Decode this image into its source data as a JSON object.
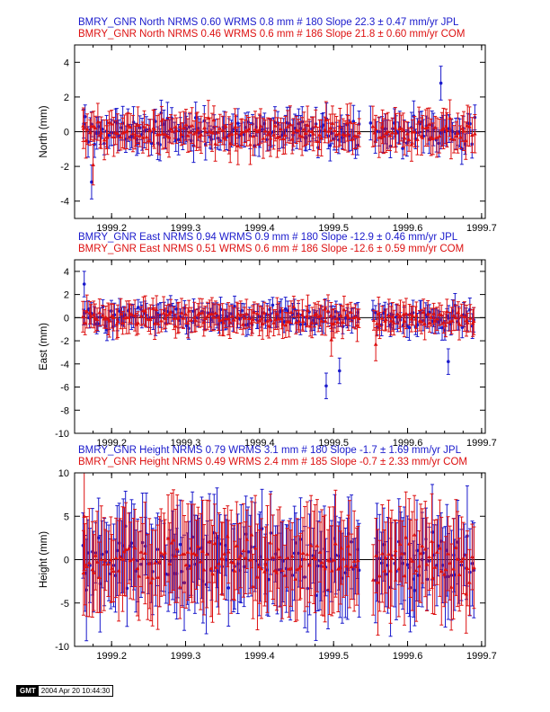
{
  "footer": {
    "logo": "GMT",
    "timestamp": "2004 Apr 20 10:44:30"
  },
  "colors": {
    "jpl": "#1a1acc",
    "com": "#dd1111",
    "zero": "#000000"
  },
  "chart_data": [
    {
      "type": "scatter",
      "title_lines": [
        "BMRY_GNR North NRMS 0.60 WRMS  0.8 mm # 180 Slope   22.3 ±  0.47 mm/yr JPL",
        "BMRY_GNR North NRMS 0.46 WRMS  0.6 mm # 186 Slope   21.8 ±  0.60 mm/yr COM"
      ],
      "ylabel": "North (mm)",
      "xlim": [
        1999.15,
        1999.705
      ],
      "ylim": [
        -5,
        5
      ],
      "xticks": [
        "1999.2",
        "1999.3",
        "1999.4",
        "1999.5",
        "1999.6",
        "1999.7"
      ],
      "yticks": [
        "-4",
        "-2",
        "0",
        "2",
        "4"
      ],
      "series": [
        {
          "name": "JPL",
          "marker": "circle",
          "n": 180,
          "wrms": 0.8,
          "err": 0.75,
          "points": [
            [
              1999.173,
              -2.9
            ],
            [
              1999.55,
              0.5
            ],
            [
              1999.645,
              2.8
            ]
          ]
        },
        {
          "name": "COM",
          "marker": "triangle",
          "n": 186,
          "wrms": 0.6,
          "err": 0.9,
          "points": [
            [
              1999.162,
              0.2
            ],
            [
              1999.175,
              -1.9
            ],
            [
              1999.553,
              0.3
            ]
          ]
        }
      ],
      "gap": [
        1999.535,
        1999.553
      ]
    },
    {
      "type": "scatter",
      "title_lines": [
        "BMRY_GNR East NRMS 0.94 WRMS  0.9 mm # 180 Slope  -12.9 ±  0.46 mm/yr JPL",
        "BMRY_GNR East NRMS 0.51 WRMS  0.6 mm # 186 Slope  -12.6 ±  0.59 mm/yr COM"
      ],
      "ylabel": "East (mm)",
      "xlim": [
        1999.15,
        1999.705
      ],
      "ylim": [
        -10,
        5
      ],
      "xticks": [
        "1999.2",
        "1999.3",
        "1999.4",
        "1999.5",
        "1999.6",
        "1999.7"
      ],
      "yticks": [
        "-10",
        "-8",
        "-6",
        "-4",
        "-2",
        "0",
        "2",
        "4"
      ],
      "series": [
        {
          "name": "JPL",
          "marker": "circle",
          "n": 180,
          "wrms": 0.9,
          "err": 0.85,
          "points": [
            [
              1999.163,
              2.9
            ],
            [
              1999.49,
              -5.9
            ],
            [
              1999.508,
              -4.6
            ],
            [
              1999.655,
              -3.8
            ]
          ]
        },
        {
          "name": "COM",
          "marker": "triangle",
          "n": 186,
          "wrms": 0.6,
          "err": 1.1,
          "points": [
            [
              1999.557,
              -2.3
            ],
            [
              1999.497,
              -1.9
            ]
          ]
        }
      ],
      "gap": [
        1999.535,
        1999.553
      ]
    },
    {
      "type": "scatter",
      "title_lines": [
        "BMRY_GNR Height NRMS 0.79 WRMS  3.1 mm # 180 Slope   -1.7 ±  1.69 mm/yr JPL",
        "BMRY_GNR Height NRMS 0.49 WRMS  2.4 mm # 185 Slope   -0.7 ±  2.33 mm/yr COM"
      ],
      "ylabel": "Height (mm)",
      "xlim": [
        1999.15,
        1999.705
      ],
      "ylim": [
        -10,
        10
      ],
      "xticks": [
        "1999.2",
        "1999.3",
        "1999.4",
        "1999.5",
        "1999.6",
        "1999.7"
      ],
      "yticks": [
        "-10",
        "-5",
        "0",
        "5",
        "10"
      ],
      "series": [
        {
          "name": "JPL",
          "marker": "circle",
          "n": 180,
          "wrms": 3.1,
          "err": 4.5,
          "points": [
            [
              1999.166,
              -3.5
            ]
          ]
        },
        {
          "name": "COM",
          "marker": "triangle",
          "n": 185,
          "wrms": 2.4,
          "err": 4.8,
          "points": [
            [
              1999.163,
              5.0
            ]
          ]
        }
      ],
      "gap": [
        1999.535,
        1999.553
      ]
    }
  ]
}
